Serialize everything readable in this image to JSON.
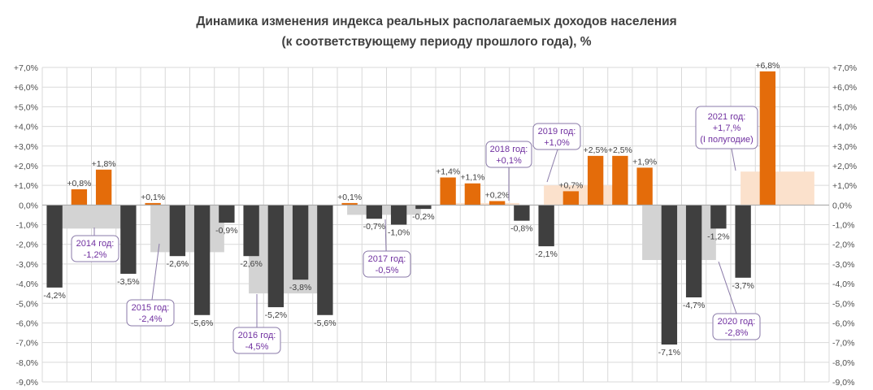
{
  "title_line1": "Динамика изменения индекса реальных располагаемых доходов населения",
  "title_line2": "(к соответствующему  периоду прошлого года), %",
  "colors": {
    "negative": "#3f3f3f",
    "positive": "#e46c0a",
    "annual_negative": "#d3d3d3",
    "annual_positive": "#fbe1cc",
    "note_text": "#7030a0",
    "note_border": "#8a7aa8",
    "grid": "#d9d9d9"
  },
  "chart_data": {
    "type": "bar",
    "ylim": [
      -9,
      7
    ],
    "y_ticks": [
      "+7,0%",
      "+6,0%",
      "+5,0%",
      "+4,0%",
      "+3,0%",
      "+2,0%",
      "+1,0%",
      "0,0%",
      "-1,0%",
      "-2,0%",
      "-3,0%",
      "-4,0%",
      "-5,0%",
      "-6,0%",
      "-7,0%",
      "-8,0%",
      "-9,0%"
    ],
    "grid": true,
    "series": [
      {
        "values": [
          -4.2,
          0.8,
          1.8,
          -3.5,
          0.1,
          -2.6,
          -5.6,
          -0.9,
          -2.6,
          -5.2,
          -3.8,
          -5.6,
          0.1,
          -0.7,
          -1.0,
          -0.2,
          1.4,
          1.1,
          0.2,
          -0.8,
          -2.1,
          0.7,
          2.5,
          2.5,
          1.9,
          -7.1,
          -4.7,
          -1.2,
          -3.7,
          6.8
        ],
        "labels": [
          "-4,2%",
          "+0,8%",
          "+1,8%",
          "-3,5%",
          "+0,1%",
          "-2,6%",
          "-5,6%",
          "-0,9%",
          "-2,6%",
          "-5,2%",
          "-3,8%",
          "-5,6%",
          "+0,1%",
          "-0,7%",
          "-1,0%",
          "-0,2%",
          "+1,4%",
          "+1,1%",
          "+0,2%",
          "-0,8%",
          "-2,1%",
          "+0,7%",
          "+2,5%",
          "+2,5%",
          "+1,9%",
          "-7,1%",
          "-4,7%",
          "-1,2%",
          "-3,7%",
          "+6,8%"
        ]
      }
    ],
    "annual": [
      {
        "start": 0,
        "end": 3,
        "value": -1.2
      },
      {
        "start": 4,
        "end": 7,
        "value": -2.4
      },
      {
        "start": 8,
        "end": 11,
        "value": -4.5
      },
      {
        "start": 12,
        "end": 15,
        "value": -0.5
      },
      {
        "start": 16,
        "end": 19,
        "value": 0.1
      },
      {
        "start": 20,
        "end": 23,
        "value": 1.0
      },
      {
        "start": 24,
        "end": 27,
        "value": -2.8
      },
      {
        "start": 28,
        "end": 31,
        "value": 1.7
      }
    ],
    "annotations": [
      {
        "lines": [
          "2014 год:",
          "-1,2%"
        ],
        "anchor": 1
      },
      {
        "lines": [
          "2015 год:",
          "-2,4%"
        ],
        "anchor": 4
      },
      {
        "lines": [
          "2016 год:",
          "-4,5%"
        ],
        "anchor": 8
      },
      {
        "lines": [
          "2017 год:",
          "-0,5%"
        ],
        "anchor": 13
      },
      {
        "lines": [
          "2018 год:",
          "+0,1%"
        ],
        "anchor": 18
      },
      {
        "lines": [
          "2019 год:",
          "+1,0%"
        ],
        "anchor": 20
      },
      {
        "lines": [
          "2020 год:",
          "-2,8%"
        ],
        "anchor": 26
      },
      {
        "lines": [
          "2021 год:",
          "+1,7,%",
          "(I полугодие)"
        ],
        "anchor": 29
      }
    ]
  }
}
